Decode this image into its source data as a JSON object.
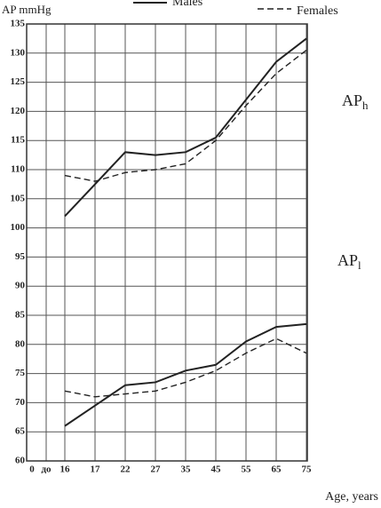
{
  "chart_data": {
    "type": "line",
    "y_label": "AP mmHg",
    "x_label": "Age, years",
    "categories": [
      "0",
      "до",
      "16",
      "17",
      "22",
      "27",
      "35",
      "45",
      "55",
      "65",
      "75"
    ],
    "series": [
      {
        "name": "Males",
        "color": "#222222",
        "dashed": false,
        "values": [
          null,
          null,
          102,
          107.5,
          113,
          112.5,
          113,
          115.5,
          122,
          128.5,
          132.5
        ]
      },
      {
        "name": "Females",
        "color": "#222222",
        "dashed": true,
        "values": [
          null,
          null,
          109,
          108,
          109.5,
          110,
          111,
          115,
          121,
          126.5,
          130.5
        ]
      },
      {
        "color": "#222222",
        "dashed": false,
        "values": [
          null,
          null,
          66,
          69.5,
          73,
          73.5,
          75.5,
          76.5,
          80.5,
          83,
          83.5
        ]
      },
      {
        "color": "#222222",
        "dashed": true,
        "values": [
          null,
          null,
          72,
          71,
          71.5,
          72,
          73.5,
          75.5,
          78.5,
          81,
          78.5
        ]
      }
    ],
    "annotations": [
      {
        "text": "AP",
        "sub": "h"
      },
      {
        "text": "AP",
        "sub": "l"
      }
    ],
    "ylim": [
      60,
      135
    ],
    "yticks": [
      60,
      65,
      70,
      75,
      80,
      85,
      90,
      95,
      100,
      105,
      110,
      115,
      120,
      125,
      130,
      135
    ],
    "grid": true
  }
}
